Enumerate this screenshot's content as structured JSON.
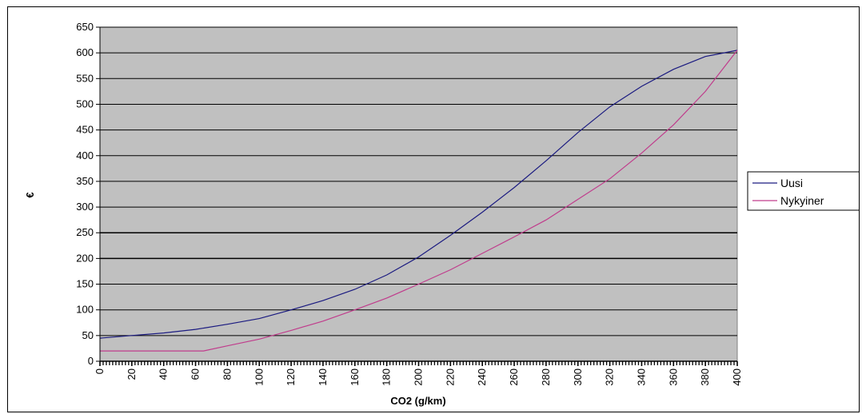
{
  "chart_data": {
    "type": "line",
    "title": "",
    "xlabel": "CO2 (g/km)",
    "ylabel": "€",
    "xlim": [
      0,
      400
    ],
    "ylim": [
      0,
      650
    ],
    "y_ticks": [
      "0",
      "50",
      "100",
      "150",
      "200",
      "250",
      "300",
      "350",
      "400",
      "450",
      "500",
      "550",
      "600",
      "650"
    ],
    "x_ticks": [
      "0",
      "20",
      "40",
      "60",
      "80",
      "100",
      "120",
      "140",
      "160",
      "180",
      "200",
      "220",
      "240",
      "260",
      "280",
      "300",
      "320",
      "340",
      "360",
      "380",
      "400"
    ],
    "grid": "horizontal",
    "legend_position": "right",
    "colors": {
      "plot_bg": "#c0c0c0",
      "uusi": "#1a1a80",
      "nykyinen": "#c03c8c"
    },
    "series": [
      {
        "name": "Uusi",
        "x": [
          0,
          20,
          40,
          60,
          80,
          100,
          120,
          140,
          160,
          180,
          200,
          220,
          240,
          260,
          280,
          300,
          320,
          340,
          360,
          380,
          400
        ],
        "values": [
          45,
          50,
          55,
          62,
          72,
          83,
          100,
          118,
          140,
          168,
          203,
          245,
          290,
          338,
          390,
          445,
          495,
          535,
          568,
          593,
          605
        ]
      },
      {
        "name": "Nykyiner",
        "x": [
          0,
          20,
          40,
          60,
          65,
          80,
          100,
          120,
          140,
          160,
          180,
          200,
          220,
          240,
          260,
          280,
          300,
          320,
          340,
          360,
          380,
          400
        ],
        "values": [
          20,
          20,
          20,
          20,
          20,
          30,
          43,
          60,
          78,
          100,
          123,
          150,
          178,
          210,
          242,
          275,
          315,
          355,
          405,
          460,
          525,
          605
        ]
      }
    ]
  }
}
